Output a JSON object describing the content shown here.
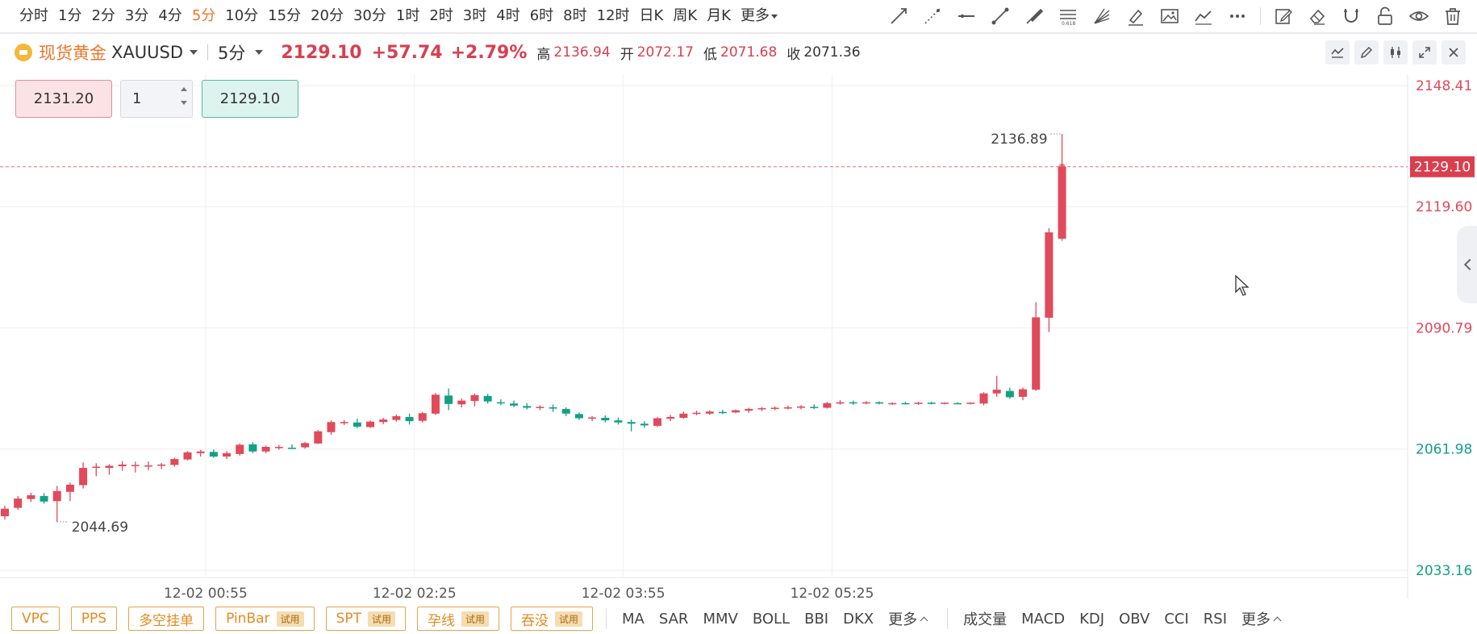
{
  "periods": [
    {
      "label": "分时",
      "active": false
    },
    {
      "label": "1分",
      "active": false
    },
    {
      "label": "2分",
      "active": false
    },
    {
      "label": "3分",
      "active": false
    },
    {
      "label": "4分",
      "active": false
    },
    {
      "label": "5分",
      "active": true
    },
    {
      "label": "10分",
      "active": false
    },
    {
      "label": "15分",
      "active": false
    },
    {
      "label": "20分",
      "active": false
    },
    {
      "label": "30分",
      "active": false
    },
    {
      "label": "1时",
      "active": false
    },
    {
      "label": "2时",
      "active": false
    },
    {
      "label": "3时",
      "active": false
    },
    {
      "label": "4时",
      "active": false
    },
    {
      "label": "6时",
      "active": false
    },
    {
      "label": "8时",
      "active": false
    },
    {
      "label": "12时",
      "active": false
    },
    {
      "label": "日K",
      "active": false
    },
    {
      "label": "周K",
      "active": false
    },
    {
      "label": "月K",
      "active": false
    }
  ],
  "periods_more": "更多",
  "tools": [
    "trend-line-icon",
    "ray-line-icon",
    "horizontal-line-icon",
    "segment-icon",
    "brush-icon",
    "fibonacci-icon",
    "fan-icon",
    "highlighter-icon",
    "image-icon",
    "polyline-icon",
    "more-icon",
    "note-icon",
    "eraser-icon",
    "magnet-icon",
    "lock-icon",
    "eye-icon",
    "trash-icon"
  ],
  "fib_label": "0.618",
  "symbol": {
    "name": "现货黄金",
    "code": "XAUUSD",
    "period": "5分",
    "price": "2129.10",
    "change": "+57.74",
    "percent": "+2.79%",
    "high_label": "高",
    "high": "2136.94",
    "open_label": "开",
    "open": "2072.17",
    "low_label": "低",
    "low": "2071.68",
    "close_label": "收",
    "close": "2071.36"
  },
  "trade": {
    "sell_price": "2131.20",
    "quantity": "1",
    "buy_price": "2129.10"
  },
  "colors": {
    "up": "#e04a5a",
    "down": "#12a085",
    "accent": "#f0752b"
  },
  "chart_data": {
    "type": "candlestick",
    "price_axis": [
      "2148.41",
      "2119.60",
      "2090.79",
      "2061.98",
      "2033.16"
    ],
    "current_price": "2129.10",
    "time_labels": [
      "12-02 00:55",
      "12-02 02:25",
      "12-02 03:55",
      "12-02 05:25"
    ],
    "high_marker": "2136.89",
    "low_marker": "2044.69",
    "ylim": [
      2033.16,
      2148.41
    ],
    "candles": [
      [
        2046.0,
        2048.5,
        2045.2,
        2047.8
      ],
      [
        2048.0,
        2050.8,
        2047.5,
        2050.2
      ],
      [
        2050.1,
        2051.6,
        2049.4,
        2051.0
      ],
      [
        2050.8,
        2051.5,
        2049.0,
        2049.5
      ],
      [
        2049.6,
        2053.2,
        2044.7,
        2052.0
      ],
      [
        2051.8,
        2054.0,
        2049.6,
        2053.5
      ],
      [
        2053.4,
        2058.8,
        2052.6,
        2057.5
      ],
      [
        2057.6,
        2058.6,
        2055.5,
        2057.8
      ],
      [
        2057.5,
        2058.4,
        2055.9,
        2058.0
      ],
      [
        2057.9,
        2059.1,
        2056.8,
        2058.3
      ],
      [
        2058.0,
        2059.0,
        2056.4,
        2058.2
      ],
      [
        2058.1,
        2059.0,
        2056.9,
        2058.1
      ],
      [
        2058.0,
        2058.7,
        2057.2,
        2058.3
      ],
      [
        2058.2,
        2059.9,
        2057.8,
        2059.6
      ],
      [
        2059.5,
        2061.5,
        2059.3,
        2061.2
      ],
      [
        2061.0,
        2061.8,
        2060.2,
        2061.4
      ],
      [
        2061.3,
        2061.9,
        2059.9,
        2060.2
      ],
      [
        2060.2,
        2061.5,
        2059.6,
        2061.0
      ],
      [
        2060.8,
        2063.3,
        2060.4,
        2063.0
      ],
      [
        2063.1,
        2063.6,
        2061.0,
        2061.4
      ],
      [
        2061.4,
        2062.8,
        2061.0,
        2062.5
      ],
      [
        2062.4,
        2063.0,
        2061.8,
        2062.5
      ],
      [
        2062.3,
        2063.1,
        2062.0,
        2062.2
      ],
      [
        2062.4,
        2063.7,
        2062.1,
        2063.4
      ],
      [
        2063.3,
        2066.5,
        2063.2,
        2066.2
      ],
      [
        2066.0,
        2068.8,
        2065.4,
        2068.4
      ],
      [
        2068.3,
        2068.9,
        2067.7,
        2068.4
      ],
      [
        2068.3,
        2069.2,
        2066.9,
        2067.3
      ],
      [
        2067.2,
        2068.8,
        2067.0,
        2068.5
      ],
      [
        2068.4,
        2069.4,
        2067.9,
        2069.0
      ],
      [
        2068.9,
        2070.2,
        2068.5,
        2069.8
      ],
      [
        2069.6,
        2070.4,
        2067.8,
        2068.6
      ],
      [
        2068.7,
        2070.8,
        2068.3,
        2070.5
      ],
      [
        2070.4,
        2075.3,
        2070.1,
        2074.9
      ],
      [
        2074.7,
        2076.4,
        2071.2,
        2072.7
      ],
      [
        2072.6,
        2074.0,
        2071.9,
        2073.5
      ],
      [
        2073.4,
        2075.2,
        2072.1,
        2074.8
      ],
      [
        2074.6,
        2075.1,
        2072.8,
        2073.3
      ],
      [
        2073.1,
        2073.8,
        2072.4,
        2072.9
      ],
      [
        2072.8,
        2073.5,
        2071.9,
        2072.3
      ],
      [
        2072.2,
        2072.9,
        2071.4,
        2071.8
      ],
      [
        2071.8,
        2072.4,
        2071.2,
        2072.0
      ],
      [
        2071.9,
        2072.6,
        2070.8,
        2071.6
      ],
      [
        2071.5,
        2071.9,
        2069.8,
        2070.4
      ],
      [
        2070.3,
        2070.7,
        2068.9,
        2069.3
      ],
      [
        2069.2,
        2069.8,
        2068.6,
        2069.5
      ],
      [
        2069.4,
        2070.0,
        2068.3,
        2068.8
      ],
      [
        2068.8,
        2069.5,
        2067.8,
        2068.3
      ],
      [
        2068.4,
        2069.0,
        2066.2,
        2068.0
      ],
      [
        2068.0,
        2068.6,
        2067.0,
        2067.6
      ],
      [
        2067.5,
        2069.6,
        2067.2,
        2069.3
      ],
      [
        2069.2,
        2070.1,
        2068.6,
        2069.6
      ],
      [
        2069.4,
        2070.9,
        2069.2,
        2070.4
      ],
      [
        2070.5,
        2071.1,
        2070.0,
        2070.6
      ],
      [
        2070.4,
        2071.2,
        2070.1,
        2070.9
      ],
      [
        2070.8,
        2071.3,
        2070.3,
        2070.7
      ],
      [
        2070.7,
        2071.4,
        2070.5,
        2071.2
      ],
      [
        2071.1,
        2071.8,
        2070.6,
        2071.5
      ],
      [
        2071.5,
        2072.0,
        2071.0,
        2071.7
      ],
      [
        2071.6,
        2072.1,
        2071.2,
        2071.8
      ],
      [
        2071.8,
        2072.3,
        2071.4,
        2071.9
      ],
      [
        2071.8,
        2072.4,
        2071.4,
        2072.1
      ],
      [
        2072.0,
        2072.6,
        2071.5,
        2071.8
      ],
      [
        2071.8,
        2073.2,
        2071.6,
        2072.9
      ],
      [
        2072.8,
        2073.6,
        2072.5,
        2073.1
      ],
      [
        2073.1,
        2073.5,
        2072.5,
        2072.9
      ],
      [
        2072.9,
        2073.4,
        2072.6,
        2073.1
      ],
      [
        2073.1,
        2073.3,
        2072.6,
        2072.8
      ],
      [
        2072.8,
        2073.1,
        2072.5,
        2072.9
      ],
      [
        2072.9,
        2073.2,
        2072.6,
        2072.8
      ],
      [
        2072.9,
        2073.2,
        2072.5,
        2073.0
      ],
      [
        2073.0,
        2073.2,
        2072.6,
        2072.9
      ],
      [
        2072.9,
        2073.1,
        2072.6,
        2073.0
      ],
      [
        2072.9,
        2073.1,
        2072.7,
        2072.8
      ],
      [
        2072.9,
        2073.1,
        2072.6,
        2073.0
      ],
      [
        2072.8,
        2075.5,
        2072.4,
        2075.2
      ],
      [
        2075.2,
        2079.4,
        2074.4,
        2076.1
      ],
      [
        2075.8,
        2076.6,
        2073.9,
        2074.3
      ],
      [
        2074.4,
        2076.6,
        2073.6,
        2076.2
      ],
      [
        2076.1,
        2096.9,
        2075.8,
        2093.3
      ],
      [
        2093.2,
        2114.5,
        2089.8,
        2113.5
      ],
      [
        2112.0,
        2136.9,
        2111.5,
        2129.1
      ]
    ]
  },
  "strategies": [
    {
      "label": "VPC",
      "trial": ""
    },
    {
      "label": "PPS",
      "trial": ""
    },
    {
      "label": "多空挂单",
      "trial": ""
    },
    {
      "label": "PinBar",
      "trial": "试用"
    },
    {
      "label": "SPT",
      "trial": "试用"
    },
    {
      "label": "孕线",
      "trial": "试用"
    },
    {
      "label": "吞没",
      "trial": "试用"
    }
  ],
  "main_indicators": [
    "MA",
    "SAR",
    "MMV",
    "BOLL",
    "BBI",
    "DKX"
  ],
  "main_more": "更多",
  "sub_indicators": [
    "成交量",
    "MACD",
    "KDJ",
    "OBV",
    "CCI",
    "RSI"
  ],
  "sub_more": "更多"
}
